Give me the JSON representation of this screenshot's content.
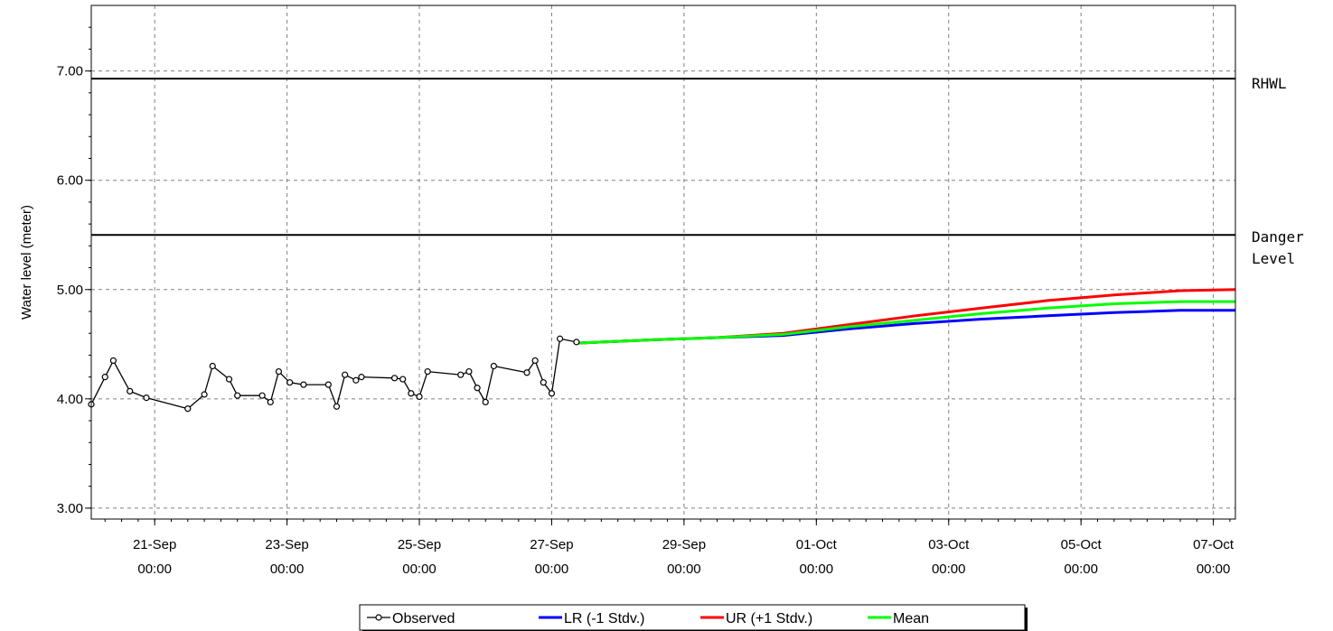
{
  "chart_data": {
    "type": "line",
    "title": "",
    "xlabel": "",
    "ylabel": "Water level (meter)",
    "ylim": [
      2.9,
      7.6
    ],
    "xlim": [
      "2014-09-20T01:00",
      "2014-10-07T08:00"
    ],
    "grid": true,
    "legend_position": "bottom",
    "y_ticks": [
      {
        "value": 3.0,
        "label": "3.00"
      },
      {
        "value": 4.0,
        "label": "4.00"
      },
      {
        "value": 5.0,
        "label": "5.00"
      },
      {
        "value": 6.0,
        "label": "6.00"
      },
      {
        "value": 7.0,
        "label": "7.00"
      }
    ],
    "x_ticks": [
      {
        "value": "2014-09-21T00:00",
        "date": "21-Sep",
        "time": "00:00"
      },
      {
        "value": "2014-09-23T00:00",
        "date": "23-Sep",
        "time": "00:00"
      },
      {
        "value": "2014-09-25T00:00",
        "date": "25-Sep",
        "time": "00:00"
      },
      {
        "value": "2014-09-27T00:00",
        "date": "27-Sep",
        "time": "00:00"
      },
      {
        "value": "2014-09-29T00:00",
        "date": "29-Sep",
        "time": "00:00"
      },
      {
        "value": "2014-10-01T00:00",
        "date": "01-Oct",
        "time": "00:00"
      },
      {
        "value": "2014-10-03T00:00",
        "date": "03-Oct",
        "time": "00:00"
      },
      {
        "value": "2014-10-05T00:00",
        "date": "05-Oct",
        "time": "00:00"
      },
      {
        "value": "2014-10-07T00:00",
        "date": "07-Oct",
        "time": "00:00"
      }
    ],
    "reference_lines": [
      {
        "value": 6.93,
        "label_lines": [
          "RHWL"
        ]
      },
      {
        "value": 5.5,
        "label_lines": [
          "Danger",
          "Level"
        ]
      }
    ],
    "series": [
      {
        "name": "Observed",
        "color": "#000000",
        "marker": "circle",
        "points": [
          {
            "x": "2014-09-20T01:00",
            "y": 3.95
          },
          {
            "x": "2014-09-20T06:00",
            "y": 4.2
          },
          {
            "x": "2014-09-20T09:00",
            "y": 4.35
          },
          {
            "x": "2014-09-20T15:00",
            "y": 4.07
          },
          {
            "x": "2014-09-20T21:00",
            "y": 4.01
          },
          {
            "x": "2014-09-21T12:00",
            "y": 3.91
          },
          {
            "x": "2014-09-21T18:00",
            "y": 4.04
          },
          {
            "x": "2014-09-21T21:00",
            "y": 4.3
          },
          {
            "x": "2014-09-22T03:00",
            "y": 4.18
          },
          {
            "x": "2014-09-22T06:00",
            "y": 4.03
          },
          {
            "x": "2014-09-22T15:00",
            "y": 4.03
          },
          {
            "x": "2014-09-22T18:00",
            "y": 3.97
          },
          {
            "x": "2014-09-22T21:00",
            "y": 4.25
          },
          {
            "x": "2014-09-23T01:00",
            "y": 4.15
          },
          {
            "x": "2014-09-23T06:00",
            "y": 4.13
          },
          {
            "x": "2014-09-23T15:00",
            "y": 4.13
          },
          {
            "x": "2014-09-23T18:00",
            "y": 3.93
          },
          {
            "x": "2014-09-23T21:00",
            "y": 4.22
          },
          {
            "x": "2014-09-24T01:00",
            "y": 4.17
          },
          {
            "x": "2014-09-24T03:00",
            "y": 4.2
          },
          {
            "x": "2014-09-24T15:00",
            "y": 4.19
          },
          {
            "x": "2014-09-24T18:00",
            "y": 4.18
          },
          {
            "x": "2014-09-24T21:00",
            "y": 4.05
          },
          {
            "x": "2014-09-25T00:00",
            "y": 4.02
          },
          {
            "x": "2014-09-25T03:00",
            "y": 4.25
          },
          {
            "x": "2014-09-25T15:00",
            "y": 4.22
          },
          {
            "x": "2014-09-25T18:00",
            "y": 4.25
          },
          {
            "x": "2014-09-25T21:00",
            "y": 4.1
          },
          {
            "x": "2014-09-26T00:00",
            "y": 3.97
          },
          {
            "x": "2014-09-26T03:00",
            "y": 4.3
          },
          {
            "x": "2014-09-26T15:00",
            "y": 4.24
          },
          {
            "x": "2014-09-26T18:00",
            "y": 4.35
          },
          {
            "x": "2014-09-26T21:00",
            "y": 4.15
          },
          {
            "x": "2014-09-27T00:00",
            "y": 4.05
          },
          {
            "x": "2014-09-27T03:00",
            "y": 4.55
          },
          {
            "x": "2014-09-27T09:00",
            "y": 4.52
          }
        ]
      },
      {
        "name": "LR (-1 Stdv.)",
        "color": "#0000ff",
        "points": [
          {
            "x": "2014-09-27T09:00",
            "y": 4.51
          },
          {
            "x": "2014-09-28T12:00",
            "y": 4.54
          },
          {
            "x": "2014-09-29T12:00",
            "y": 4.56
          },
          {
            "x": "2014-09-30T12:00",
            "y": 4.58
          },
          {
            "x": "2014-10-01T12:00",
            "y": 4.64
          },
          {
            "x": "2014-10-02T12:00",
            "y": 4.69
          },
          {
            "x": "2014-10-03T12:00",
            "y": 4.73
          },
          {
            "x": "2014-10-04T12:00",
            "y": 4.76
          },
          {
            "x": "2014-10-05T12:00",
            "y": 4.79
          },
          {
            "x": "2014-10-06T12:00",
            "y": 4.81
          },
          {
            "x": "2014-10-07T08:00",
            "y": 4.81
          }
        ]
      },
      {
        "name": "UR (+1 Stdv.)",
        "color": "#ff0000",
        "points": [
          {
            "x": "2014-09-27T09:00",
            "y": 4.51
          },
          {
            "x": "2014-09-28T12:00",
            "y": 4.54
          },
          {
            "x": "2014-09-29T12:00",
            "y": 4.56
          },
          {
            "x": "2014-09-30T12:00",
            "y": 4.6
          },
          {
            "x": "2014-10-01T12:00",
            "y": 4.68
          },
          {
            "x": "2014-10-02T12:00",
            "y": 4.76
          },
          {
            "x": "2014-10-03T12:00",
            "y": 4.83
          },
          {
            "x": "2014-10-04T12:00",
            "y": 4.9
          },
          {
            "x": "2014-10-05T12:00",
            "y": 4.95
          },
          {
            "x": "2014-10-06T12:00",
            "y": 4.99
          },
          {
            "x": "2014-10-07T08:00",
            "y": 5.0
          }
        ]
      },
      {
        "name": "Mean",
        "color": "#00ff00",
        "points": [
          {
            "x": "2014-09-27T09:00",
            "y": 4.51
          },
          {
            "x": "2014-09-28T12:00",
            "y": 4.54
          },
          {
            "x": "2014-09-29T12:00",
            "y": 4.56
          },
          {
            "x": "2014-09-30T12:00",
            "y": 4.59
          },
          {
            "x": "2014-10-01T12:00",
            "y": 4.66
          },
          {
            "x": "2014-10-02T12:00",
            "y": 4.72
          },
          {
            "x": "2014-10-03T12:00",
            "y": 4.78
          },
          {
            "x": "2014-10-04T12:00",
            "y": 4.83
          },
          {
            "x": "2014-10-05T12:00",
            "y": 4.87
          },
          {
            "x": "2014-10-06T12:00",
            "y": 4.89
          },
          {
            "x": "2014-10-07T08:00",
            "y": 4.89
          }
        ]
      }
    ]
  }
}
